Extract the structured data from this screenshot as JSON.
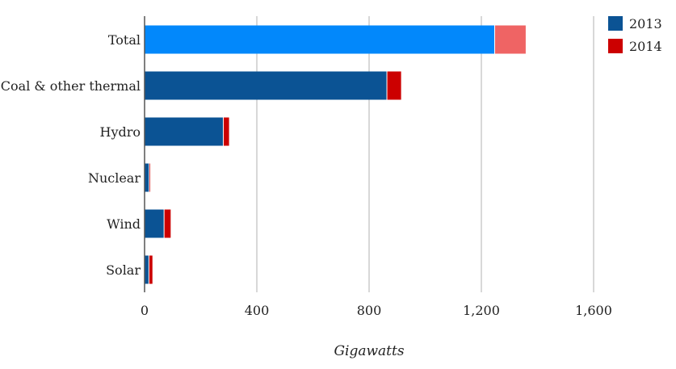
{
  "chart_data": {
    "type": "bar",
    "orientation": "horizontal",
    "stacked": true,
    "categories": [
      "Total",
      "Coal & other thermal",
      "Hydro",
      "Nuclear",
      "Wind",
      "Solar"
    ],
    "series": [
      {
        "name": "2013",
        "values": [
          1246,
          862,
          279,
          15,
          68,
          14
        ],
        "color": "#0b5394"
      },
      {
        "name": "2014",
        "values": [
          112,
          52,
          22,
          5,
          25,
          14
        ],
        "color": "#cc0000"
      }
    ],
    "highlight": {
      "category": "Total",
      "colors": [
        "#0288fb",
        "#ef6464"
      ]
    },
    "xlabel": "Gigawatts",
    "ylabel": "",
    "xlim": [
      0,
      1600
    ],
    "xticks": [
      0,
      400,
      800,
      1200,
      1600
    ],
    "xtick_labels": [
      "0",
      "400",
      "800",
      "1,200",
      "1,600"
    ],
    "grid": true,
    "legend": "top-right"
  }
}
